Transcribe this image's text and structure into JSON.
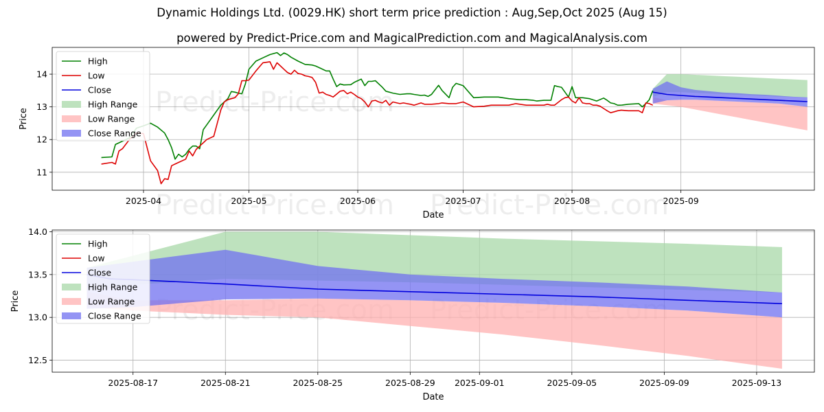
{
  "title": "Dynamic Holdings Ltd. (0029.HK) short term price prediction : Aug,Sep,Oct 2025 (Aug 15)",
  "subtitle": "powered by Predict-Price.com and MagicalPrediction.com and MagicalAnalysis.com",
  "watermark": "Predict-Price.com",
  "colors": {
    "high": "#008000",
    "low": "#dd0000",
    "close": "#0000dd",
    "high_range": "#a8d8a8",
    "low_range": "#ffb0b0",
    "close_range": "#7070f0"
  },
  "chart_data": [
    {
      "type": "line",
      "xlabel": "Date",
      "ylabel": "Price",
      "ylim": [
        10.45,
        14.82
      ],
      "yticks": [
        11,
        12,
        13,
        14
      ],
      "xticks": [
        {
          "label": "2025-04",
          "day": 1
        },
        {
          "label": "2025-05",
          "day": 31
        },
        {
          "label": "2025-06",
          "day": 62
        },
        {
          "label": "2025-07",
          "day": 92
        },
        {
          "label": "2025-08",
          "day": 123
        },
        {
          "label": "2025-09",
          "day": 154
        }
      ],
      "xlim": [
        -25,
        192
      ],
      "grid": true,
      "legend_position": "top-left",
      "legend": [
        "High",
        "Low",
        "Close",
        "High Range",
        "Low Range",
        "Close Range"
      ],
      "high": {
        "x": [
          -11,
          -8,
          -7,
          -6,
          -5,
          -3,
          -1,
          1,
          3,
          5,
          7,
          8,
          9,
          10,
          11,
          12,
          13,
          14,
          15,
          16,
          17,
          18,
          19,
          21,
          23,
          25,
          26,
          27,
          28,
          29,
          30,
          31,
          33,
          35,
          37,
          39,
          40,
          41,
          42,
          43,
          45,
          47,
          49,
          50,
          51,
          52,
          53,
          54,
          55,
          56,
          57,
          58,
          60,
          61,
          62,
          63,
          64,
          65,
          66,
          67,
          69,
          70,
          72,
          74,
          76,
          77,
          78,
          80,
          81,
          82,
          83,
          85,
          86,
          88,
          89,
          90,
          92,
          95,
          98,
          100,
          102,
          105,
          108,
          110,
          112,
          113,
          115,
          117,
          118,
          119,
          120,
          121,
          122,
          123,
          124,
          126,
          128,
          130,
          132,
          133,
          134,
          135,
          136,
          137
        ],
        "y": [
          11.45,
          11.47,
          11.85,
          11.9,
          11.95,
          12.05,
          12.35,
          12.42,
          12.5,
          12.38,
          12.2,
          12.0,
          11.75,
          11.4,
          11.55,
          11.47,
          11.55,
          11.7,
          11.8,
          11.8,
          11.72,
          12.3,
          12.45,
          12.75,
          13.05,
          13.25,
          13.47,
          13.45,
          13.42,
          13.4,
          13.7,
          14.15,
          14.4,
          14.5,
          14.6,
          14.66,
          14.57,
          14.65,
          14.6,
          14.52,
          14.4,
          14.3,
          14.28,
          14.25,
          14.2,
          14.15,
          14.1,
          14.1,
          13.85,
          13.62,
          13.7,
          13.67,
          13.68,
          13.75,
          13.8,
          13.85,
          13.65,
          13.78,
          13.78,
          13.8,
          13.6,
          13.48,
          13.42,
          13.38,
          13.4,
          13.4,
          13.38,
          13.35,
          13.36,
          13.32,
          13.38,
          13.66,
          13.5,
          13.28,
          13.6,
          13.72,
          13.65,
          13.28,
          13.3,
          13.3,
          13.3,
          13.25,
          13.22,
          13.22,
          13.2,
          13.18,
          13.2,
          13.2,
          13.65,
          13.62,
          13.6,
          13.45,
          13.3,
          13.62,
          13.28,
          13.28,
          13.25,
          13.18,
          13.27,
          13.2,
          13.12,
          13.1,
          13.05,
          13.05
        ],
        "x2": [
          137,
          139,
          142,
          143,
          144,
          145,
          146
        ],
        "y2": [
          13.05,
          13.08,
          13.1,
          13.0,
          13.1,
          13.22,
          13.5
        ]
      },
      "low": {
        "x": [
          -11,
          -8,
          -7,
          -6,
          -5,
          -3,
          -1,
          1,
          3,
          5,
          6,
          7,
          8,
          9,
          10,
          11,
          13,
          14,
          15,
          16,
          17,
          18,
          19,
          21,
          23,
          24,
          25,
          26,
          27,
          28,
          29,
          30,
          31,
          33,
          35,
          37,
          38,
          39,
          40,
          41,
          42,
          43,
          44,
          45,
          46,
          47,
          48,
          49,
          50,
          51,
          52,
          53,
          54,
          55,
          57,
          58,
          59,
          60,
          61,
          62,
          63,
          64,
          65,
          66,
          67,
          68,
          69,
          70,
          71,
          72,
          74,
          75,
          76,
          77,
          78,
          80,
          81,
          83,
          85,
          86,
          88,
          89,
          90,
          92,
          95,
          98,
          100,
          102,
          105,
          107,
          110,
          112,
          114,
          115,
          116,
          117,
          118,
          120,
          121,
          122,
          123,
          124,
          125,
          126,
          127,
          128,
          129,
          130,
          131,
          132,
          133,
          134,
          135,
          136,
          137,
          139,
          142,
          143,
          144,
          145,
          146
        ],
        "y": [
          11.25,
          11.3,
          11.25,
          11.65,
          11.72,
          12.0,
          12.2,
          12.18,
          11.35,
          11.05,
          10.65,
          10.8,
          10.78,
          11.2,
          11.25,
          11.3,
          11.4,
          11.65,
          11.5,
          11.7,
          11.8,
          11.9,
          12.0,
          12.1,
          12.9,
          13.15,
          13.22,
          13.25,
          13.28,
          13.4,
          13.8,
          13.8,
          13.82,
          14.1,
          14.35,
          14.38,
          14.15,
          14.35,
          14.25,
          14.15,
          14.05,
          14.0,
          14.12,
          14.02,
          14.0,
          13.95,
          13.93,
          13.9,
          13.75,
          13.42,
          13.45,
          13.38,
          13.35,
          13.3,
          13.48,
          13.5,
          13.4,
          13.45,
          13.38,
          13.3,
          13.25,
          13.15,
          13.0,
          13.18,
          13.2,
          13.15,
          13.12,
          13.2,
          13.05,
          13.15,
          13.1,
          13.12,
          13.1,
          13.08,
          13.05,
          13.12,
          13.08,
          13.08,
          13.1,
          13.12,
          13.1,
          13.1,
          13.1,
          13.15,
          13.0,
          13.02,
          13.05,
          13.05,
          13.05,
          13.1,
          13.05,
          13.05,
          13.05,
          13.05,
          13.08,
          13.05,
          13.05,
          13.22,
          13.28,
          13.3,
          13.18,
          13.12,
          13.28,
          13.12,
          13.1,
          13.1,
          13.05,
          13.05,
          13.02,
          12.95,
          12.88,
          12.82,
          12.85,
          12.88,
          12.9,
          12.88,
          12.88,
          12.82,
          13.12,
          13.1,
          13.05
        ],
        "x2": [
          145,
          146
        ],
        "y2": [
          13.12,
          13.1
        ]
      },
      "forecast_x": [
        146,
        150,
        154,
        158,
        162,
        166,
        170,
        174,
        178,
        182,
        186,
        190
      ],
      "close_forecast": [
        13.45,
        13.38,
        13.35,
        13.32,
        13.3,
        13.28,
        13.26,
        13.24,
        13.22,
        13.2,
        13.18,
        13.16
      ],
      "high_range": {
        "upper": [
          13.55,
          14.0,
          14.0,
          13.98,
          13.96,
          13.94,
          13.92,
          13.9,
          13.88,
          13.86,
          13.84,
          13.82
        ],
        "lower": [
          13.3,
          13.45,
          13.45,
          13.43,
          13.41,
          13.39,
          13.37,
          13.35,
          13.33,
          13.31,
          13.3,
          13.28
        ]
      },
      "low_range": {
        "upper": [
          13.3,
          13.2,
          13.22,
          13.22,
          13.2,
          13.18,
          13.16,
          13.14,
          13.12,
          13.1,
          13.05,
          13.0
        ],
        "lower": [
          13.1,
          13.05,
          13.0,
          12.92,
          12.84,
          12.76,
          12.68,
          12.6,
          12.52,
          12.44,
          12.36,
          12.28
        ]
      },
      "close_range": {
        "upper": [
          13.55,
          13.78,
          13.6,
          13.52,
          13.48,
          13.44,
          13.42,
          13.39,
          13.37,
          13.34,
          13.31,
          13.29
        ],
        "lower": [
          13.1,
          13.2,
          13.22,
          13.22,
          13.2,
          13.18,
          13.16,
          13.14,
          13.12,
          13.1,
          13.05,
          13.0
        ]
      }
    },
    {
      "type": "line",
      "xlabel": "Date",
      "ylabel": "Price",
      "ylim": [
        12.36,
        14.02
      ],
      "yticks": [
        12.5,
        13.0,
        13.5,
        14.0
      ],
      "ytick_labels": [
        "12.5",
        "13.0",
        "13.5",
        "14.0"
      ],
      "xticks": [
        {
          "label": "2025-08-17",
          "day": 2
        },
        {
          "label": "2025-08-21",
          "day": 6
        },
        {
          "label": "2025-08-25",
          "day": 10
        },
        {
          "label": "2025-08-29",
          "day": 14
        },
        {
          "label": "2025-09-01",
          "day": 17
        },
        {
          "label": "2025-09-05",
          "day": 21
        },
        {
          "label": "2025-09-09",
          "day": 25
        },
        {
          "label": "2025-09-13",
          "day": 29
        }
      ],
      "xlim": [
        -1.5,
        31.5
      ],
      "grid": true,
      "legend_position": "top-left",
      "legend": [
        "High",
        "Low",
        "Close",
        "High Range",
        "Low Range",
        "Close Range"
      ],
      "close": {
        "x": [
          0,
          1,
          2,
          6,
          10,
          14,
          18,
          22,
          26,
          30.1
        ],
        "y": [
          13.5,
          13.45,
          13.44,
          13.39,
          13.33,
          13.3,
          13.27,
          13.24,
          13.2,
          13.16
        ]
      },
      "high_range": {
        "x": [
          0,
          2,
          6,
          10,
          14,
          18,
          22,
          26,
          30.1
        ],
        "upper": [
          13.58,
          13.72,
          14.0,
          14.0,
          13.96,
          13.92,
          13.89,
          13.86,
          13.82
        ],
        "lower": [
          13.3,
          13.38,
          13.45,
          13.43,
          13.41,
          13.38,
          13.35,
          13.32,
          13.29
        ]
      },
      "low_range": {
        "x": [
          0,
          2,
          6,
          10,
          14,
          18,
          22,
          26,
          30.1
        ],
        "upper": [
          13.3,
          13.2,
          13.2,
          13.22,
          13.2,
          13.17,
          13.13,
          13.08,
          13.0
        ],
        "lower": [
          13.12,
          13.08,
          13.03,
          13.0,
          12.9,
          12.8,
          12.68,
          12.55,
          12.4
        ]
      },
      "close_range": {
        "x": [
          0,
          2,
          6,
          10,
          14,
          18,
          22,
          26,
          30.1
        ],
        "upper": [
          13.58,
          13.65,
          13.79,
          13.6,
          13.5,
          13.45,
          13.41,
          13.36,
          13.29
        ],
        "lower": [
          13.1,
          13.12,
          13.21,
          13.22,
          13.2,
          13.17,
          13.13,
          13.08,
          13.0
        ]
      }
    }
  ]
}
